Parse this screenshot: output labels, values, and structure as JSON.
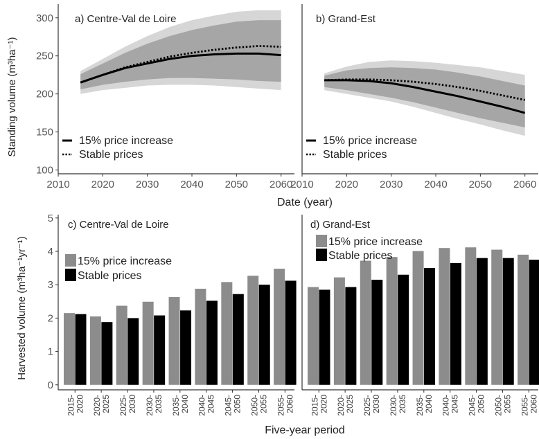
{
  "figure": {
    "top_xlabel": "Date (year)",
    "bottom_xlabel": "Five-year period",
    "top_ylabel": "Standing volume (m³ha⁻¹)",
    "bottom_ylabel": "Harvested volume (m³ha⁻¹yr⁻¹)"
  },
  "chart_data": [
    {
      "type": "line",
      "title": "a) Centre-Val de Loire",
      "xlabel": "Date (year)",
      "ylabel": "Standing volume (m³ha⁻¹)",
      "xlim": [
        2010,
        2063
      ],
      "ylim": [
        95,
        318
      ],
      "xticks": [
        "2010",
        "2020",
        "2030",
        "2040",
        "2050",
        "2060"
      ],
      "yticks": [
        "100",
        "150",
        "200",
        "250",
        "300"
      ],
      "x": [
        2015,
        2020,
        2025,
        2030,
        2035,
        2040,
        2045,
        2050,
        2055,
        2060
      ],
      "series": [
        {
          "name": "15% price increase",
          "style": "solid",
          "values": [
            215,
            225,
            234,
            240,
            246,
            250,
            252,
            253,
            253,
            251
          ]
        },
        {
          "name": "Stable prices",
          "style": "dotted",
          "values": [
            215,
            225,
            235,
            242,
            249,
            254,
            258,
            261,
            263,
            262
          ]
        }
      ],
      "bands": [
        {
          "lower": [
            200,
            205,
            208,
            211,
            212,
            212,
            211,
            209,
            207,
            205
          ],
          "upper": [
            230,
            246,
            262,
            276,
            288,
            297,
            303,
            308,
            310,
            310
          ],
          "color": "#d6d6d6"
        },
        {
          "lower": [
            206,
            212,
            216,
            219,
            221,
            221,
            220,
            219,
            217,
            216
          ],
          "upper": [
            226,
            240,
            254,
            266,
            276,
            284,
            290,
            295,
            297,
            297
          ],
          "color": "#a6a6a6"
        }
      ],
      "legend": {
        "placement": "bottom-left",
        "entries": [
          "15% price increase",
          "Stable prices"
        ]
      },
      "grid": false
    },
    {
      "type": "line",
      "title": "b) Grand-Est",
      "xlabel": "Date (year)",
      "ylabel": "",
      "xlim": [
        2010,
        2063
      ],
      "ylim": [
        95,
        318
      ],
      "xticks": [
        "2010",
        "2020",
        "2030",
        "2040",
        "2050",
        "2060"
      ],
      "yticks": [],
      "x": [
        2015,
        2020,
        2025,
        2030,
        2035,
        2040,
        2045,
        2050,
        2055,
        2060
      ],
      "series": [
        {
          "name": "15% price increase",
          "style": "solid",
          "values": [
            218,
            218,
            217,
            214,
            209,
            203,
            197,
            190,
            183,
            175
          ]
        },
        {
          "name": "Stable prices",
          "style": "dotted",
          "values": [
            218,
            219,
            219,
            218,
            216,
            213,
            209,
            204,
            198,
            192
          ]
        }
      ],
      "bands": [
        {
          "lower": [
            205,
            200,
            195,
            190,
            183,
            175,
            167,
            160,
            152,
            145
          ],
          "upper": [
            227,
            236,
            242,
            244,
            243,
            241,
            238,
            235,
            230,
            225
          ],
          "color": "#d6d6d6"
        },
        {
          "lower": [
            209,
            205,
            200,
            195,
            189,
            182,
            175,
            168,
            162,
            156
          ],
          "upper": [
            224,
            231,
            234,
            235,
            234,
            232,
            228,
            223,
            217,
            211
          ],
          "color": "#a6a6a6"
        }
      ],
      "legend": {
        "placement": "bottom-left",
        "entries": [
          "15% price increase",
          "Stable prices"
        ]
      },
      "grid": false
    },
    {
      "type": "bar",
      "title": "c) Centre-Val de Loire",
      "xlabel": "Five-year period",
      "ylabel": "Harvested volume (m³ha⁻¹yr⁻¹)",
      "ylim": [
        -0.15,
        5.1
      ],
      "yticks": [
        "0",
        "1",
        "2",
        "3",
        "4",
        "5"
      ],
      "categories": [
        "2015-2020",
        "2020-2025",
        "2025-2030",
        "2030-2035",
        "2035-2040",
        "2040-2045",
        "2045-2050",
        "2050-2055",
        "2055-2060"
      ],
      "series": [
        {
          "name": "15% price increase",
          "color": "#8c8c8c",
          "values": [
            2.15,
            2.05,
            2.37,
            2.49,
            2.63,
            2.88,
            3.08,
            3.27,
            3.48
          ]
        },
        {
          "name": "Stable prices",
          "color": "#000000",
          "values": [
            2.12,
            1.88,
            2.0,
            2.08,
            2.23,
            2.52,
            2.72,
            3.0,
            3.12
          ]
        }
      ],
      "legend": {
        "placement": "middle-left",
        "entries": [
          "15% price increase",
          "Stable prices"
        ]
      },
      "grid": false
    },
    {
      "type": "bar",
      "title": "d) Grand-Est",
      "xlabel": "Five-year period",
      "ylabel": "",
      "ylim": [
        -0.15,
        5.1
      ],
      "yticks": [],
      "categories": [
        "2015-2020",
        "2020-2025",
        "2025-2030",
        "2030-2035",
        "2035-2040",
        "2040-2045",
        "2045-2050",
        "2050-2055",
        "2055-2060"
      ],
      "series": [
        {
          "name": "15% price increase",
          "color": "#8c8c8c",
          "values": [
            2.93,
            3.22,
            3.72,
            3.83,
            4.01,
            4.1,
            4.12,
            4.05,
            3.9
          ]
        },
        {
          "name": "Stable prices",
          "color": "#000000",
          "values": [
            2.85,
            2.93,
            3.15,
            3.3,
            3.5,
            3.65,
            3.8,
            3.8,
            3.75
          ]
        }
      ],
      "legend": {
        "placement": "top-left",
        "entries": [
          "15% price increase",
          "Stable prices"
        ]
      },
      "grid": false
    }
  ]
}
